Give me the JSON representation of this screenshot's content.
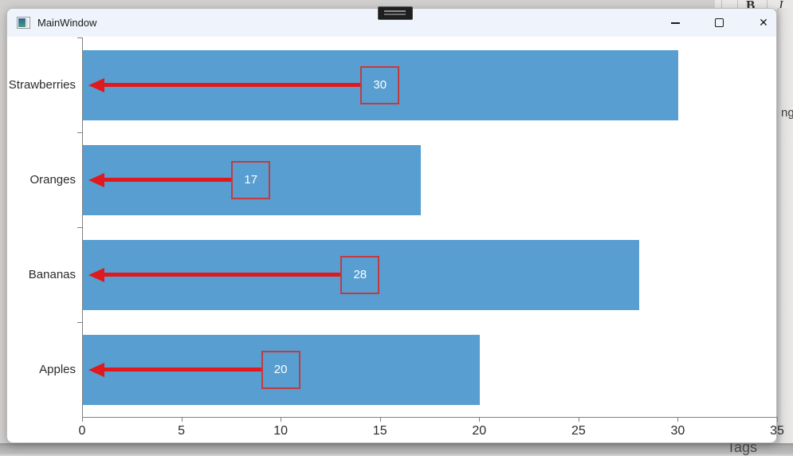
{
  "window": {
    "title": "MainWindow",
    "controls": {
      "minimize": "minimize",
      "maximize": "maximize",
      "close_glyph": "✕"
    }
  },
  "background_apps": {
    "toolbar_letters": {
      "bold": "B",
      "italic": "I"
    },
    "right_edge_text": "ng",
    "bottom_text": "Tags"
  },
  "chart_data": {
    "type": "bar",
    "orientation": "horizontal",
    "title": "",
    "categories": [
      "Strawberries",
      "Oranges",
      "Bananas",
      "Apples"
    ],
    "values": [
      30,
      17,
      28,
      20
    ],
    "value_labels": [
      "30",
      "17",
      "28",
      "20"
    ],
    "xlim": [
      0,
      35
    ],
    "xticks": [
      0,
      5,
      10,
      15,
      20,
      25,
      30,
      35
    ],
    "grid": false,
    "legend": false,
    "bar_color": "#589ed0",
    "arrow_color": "#e0191e",
    "box_border_color": "#c23b3f",
    "axis_color": "#7f7f7f",
    "annotation_style": "red left-pointing arrow from value box at bar midpoint to the y-axis"
  }
}
